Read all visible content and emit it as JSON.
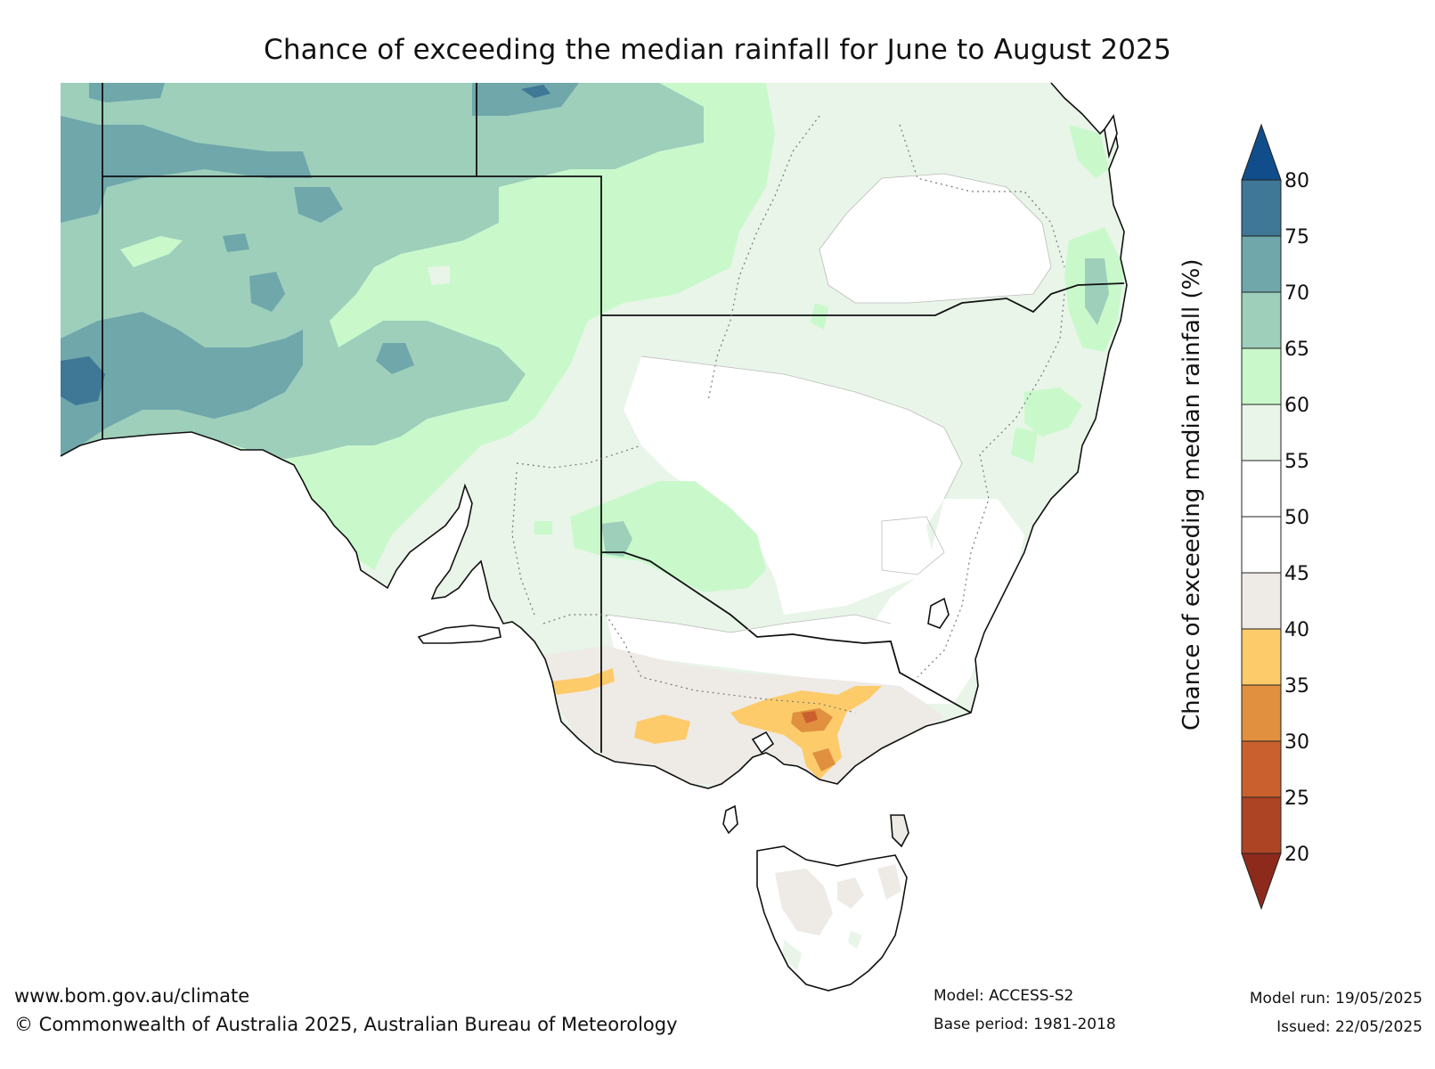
{
  "title": "Chance of exceeding the median rainfall for June to August 2025",
  "colorbar": {
    "label": "Chance of exceeding median rainfall (%)",
    "ticks": [
      "20",
      "25",
      "30",
      "35",
      "40",
      "45",
      "50",
      "55",
      "60",
      "65",
      "70",
      "75",
      "80"
    ],
    "bands": [
      {
        "range": "<20",
        "color": "#8e2a1c"
      },
      {
        "range": "20-25",
        "color": "#ad4424"
      },
      {
        "range": "25-30",
        "color": "#cb602f"
      },
      {
        "range": "30-35",
        "color": "#e0903f"
      },
      {
        "range": "35-40",
        "color": "#fdcb6a"
      },
      {
        "range": "40-45",
        "color": "#eeeae6"
      },
      {
        "range": "45-50",
        "color": "#ffffff"
      },
      {
        "range": "50-55",
        "color": "#ffffff"
      },
      {
        "range": "55-60",
        "color": "#e8f5e8"
      },
      {
        "range": "60-65",
        "color": "#c9f9cb"
      },
      {
        "range": "65-70",
        "color": "#9dcfbb"
      },
      {
        "range": "70-75",
        "color": "#6fa7ab"
      },
      {
        "range": "75-80",
        "color": "#3f7796"
      },
      {
        "range": ">80",
        "color": "#114d8a"
      }
    ]
  },
  "footer": {
    "website": "www.bom.gov.au/climate",
    "copyright": "© Commonwealth of Australia 2025, Australian Bureau of Meteorology",
    "model": "Model: ACCESS-S2",
    "base_period": "Base period: 1981-2018",
    "model_run": "Model run: 19/05/2025",
    "issued": "Issued: 22/05/2025"
  }
}
